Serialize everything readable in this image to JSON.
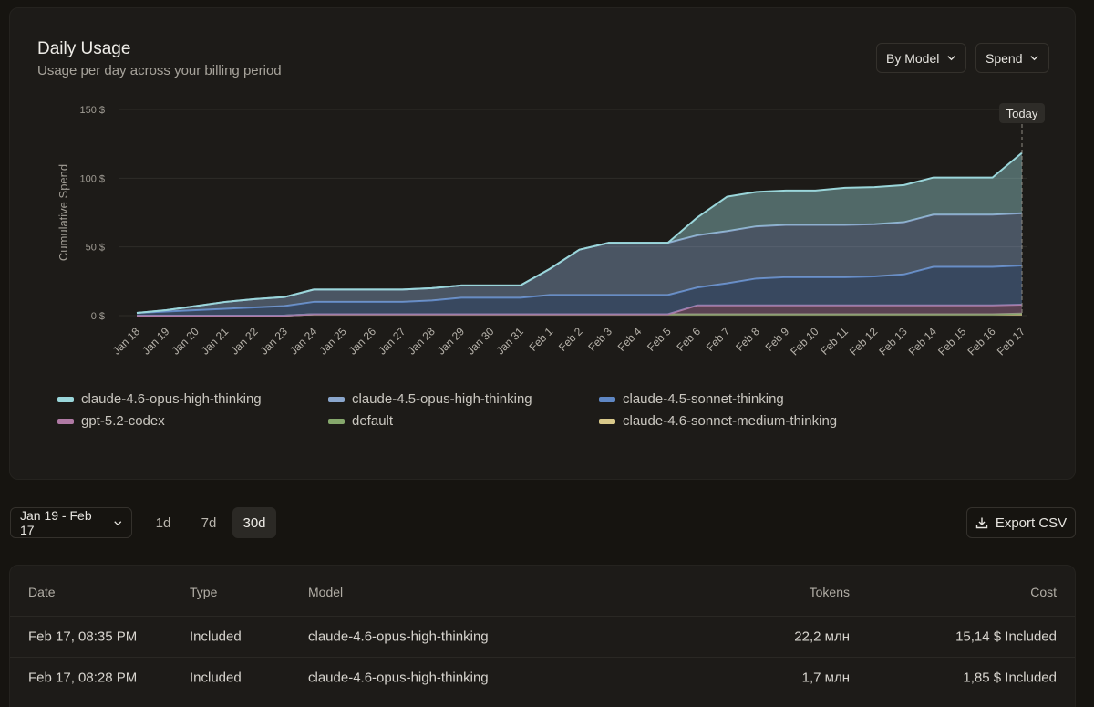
{
  "header": {
    "title": "Daily Usage",
    "subtitle": "Usage per day across your billing period",
    "group_by_label": "By Model",
    "metric_label": "Spend"
  },
  "chart_data": {
    "type": "area",
    "stacked": true,
    "ylabel": "Cumulative Spend",
    "ylim": [
      0,
      150
    ],
    "yticks": [
      "0 $",
      "50 $",
      "100 $",
      "150 $"
    ],
    "today_label": "Today",
    "grid": true,
    "legend_position": "bottom",
    "categories": [
      "Jan 18",
      "Jan 19",
      "Jan 20",
      "Jan 21",
      "Jan 22",
      "Jan 23",
      "Jan 24",
      "Jan 25",
      "Jan 26",
      "Jan 27",
      "Jan 28",
      "Jan 29",
      "Jan 30",
      "Jan 31",
      "Feb 1",
      "Feb 2",
      "Feb 3",
      "Feb 4",
      "Feb 5",
      "Feb 6",
      "Feb 7",
      "Feb 8",
      "Feb 9",
      "Feb 10",
      "Feb 11",
      "Feb 12",
      "Feb 13",
      "Feb 14",
      "Feb 15",
      "Feb 16",
      "Feb 17"
    ],
    "series": [
      {
        "name": "claude-4.6-sonnet-medium-thinking",
        "color": "#d9c98a",
        "values": [
          0,
          0,
          0,
          0,
          0,
          0,
          1,
          1,
          1,
          1,
          1,
          1,
          1,
          1,
          1,
          1,
          1,
          1,
          1,
          1,
          1,
          1,
          1,
          1,
          1,
          1,
          1,
          1,
          1,
          1,
          1
        ]
      },
      {
        "name": "default",
        "color": "#86a86c",
        "values": [
          0,
          0,
          0,
          0,
          0,
          0,
          0,
          0,
          0,
          0,
          0,
          0,
          0,
          0,
          0,
          0,
          0,
          0,
          0,
          0,
          0,
          0,
          0,
          0,
          0,
          0,
          0,
          0,
          0,
          0,
          0.5
        ]
      },
      {
        "name": "gpt-5.2-codex",
        "color": "#b07aa4",
        "values": [
          0,
          0,
          0,
          0,
          0,
          0,
          0,
          0,
          0,
          0,
          0,
          0,
          0,
          0,
          0,
          0,
          0,
          0,
          0,
          6.5,
          6.5,
          6.5,
          6.5,
          6.5,
          6.5,
          6.5,
          6.5,
          6.5,
          6.5,
          6.5,
          6.5
        ]
      },
      {
        "name": "claude-4.5-sonnet-thinking",
        "color": "#5f87c4",
        "values": [
          2,
          3,
          4,
          5,
          6,
          7,
          9,
          9,
          9,
          9,
          10,
          12,
          12,
          12,
          14,
          14,
          14,
          14,
          14,
          13,
          16,
          19.5,
          20.5,
          20.5,
          20.5,
          21,
          22.5,
          28,
          28,
          28,
          28.5
        ]
      },
      {
        "name": "claude-4.5-opus-high-thinking",
        "color": "#8aa6cc",
        "values": [
          0,
          1,
          3,
          5,
          6,
          6.5,
          9,
          9,
          9,
          9,
          9,
          9,
          9,
          9,
          19,
          33,
          38,
          38,
          38,
          38,
          38,
          38,
          38,
          38,
          38,
          38,
          38,
          38,
          38,
          38,
          38
        ]
      },
      {
        "name": "claude-4.6-opus-high-thinking",
        "color": "#9ad6da",
        "values": [
          0,
          0,
          0,
          0,
          0,
          0,
          0,
          0,
          0,
          0,
          0,
          0,
          0,
          0,
          0,
          0,
          0,
          0,
          0,
          13,
          25,
          25,
          25,
          25,
          27,
          27,
          27,
          27,
          27,
          27,
          44
        ]
      }
    ]
  },
  "legend": [
    {
      "label": "claude-4.6-opus-high-thinking",
      "color": "#9ad6da"
    },
    {
      "label": "claude-4.5-opus-high-thinking",
      "color": "#8aa6cc"
    },
    {
      "label": "claude-4.5-sonnet-thinking",
      "color": "#5f87c4"
    },
    {
      "label": "gpt-5.2-codex",
      "color": "#b07aa4"
    },
    {
      "label": "default",
      "color": "#86a86c"
    },
    {
      "label": "claude-4.6-sonnet-medium-thinking",
      "color": "#d9c98a"
    }
  ],
  "controls": {
    "date_range": "Jan 19 - Feb 17",
    "segments": [
      "1d",
      "7d",
      "30d"
    ],
    "active_segment": "30d",
    "export_label": "Export CSV"
  },
  "table": {
    "headers": {
      "date": "Date",
      "type": "Type",
      "model": "Model",
      "tokens": "Tokens",
      "cost": "Cost"
    },
    "rows": [
      {
        "date": "Feb 17, 08:35 PM",
        "type": "Included",
        "model": "claude-4.6-opus-high-thinking",
        "tokens": "22,2 млн",
        "cost": "15,14 $ Included"
      },
      {
        "date": "Feb 17, 08:28 PM",
        "type": "Included",
        "model": "claude-4.6-opus-high-thinking",
        "tokens": "1,7 млн",
        "cost": "1,85 $ Included"
      }
    ]
  }
}
